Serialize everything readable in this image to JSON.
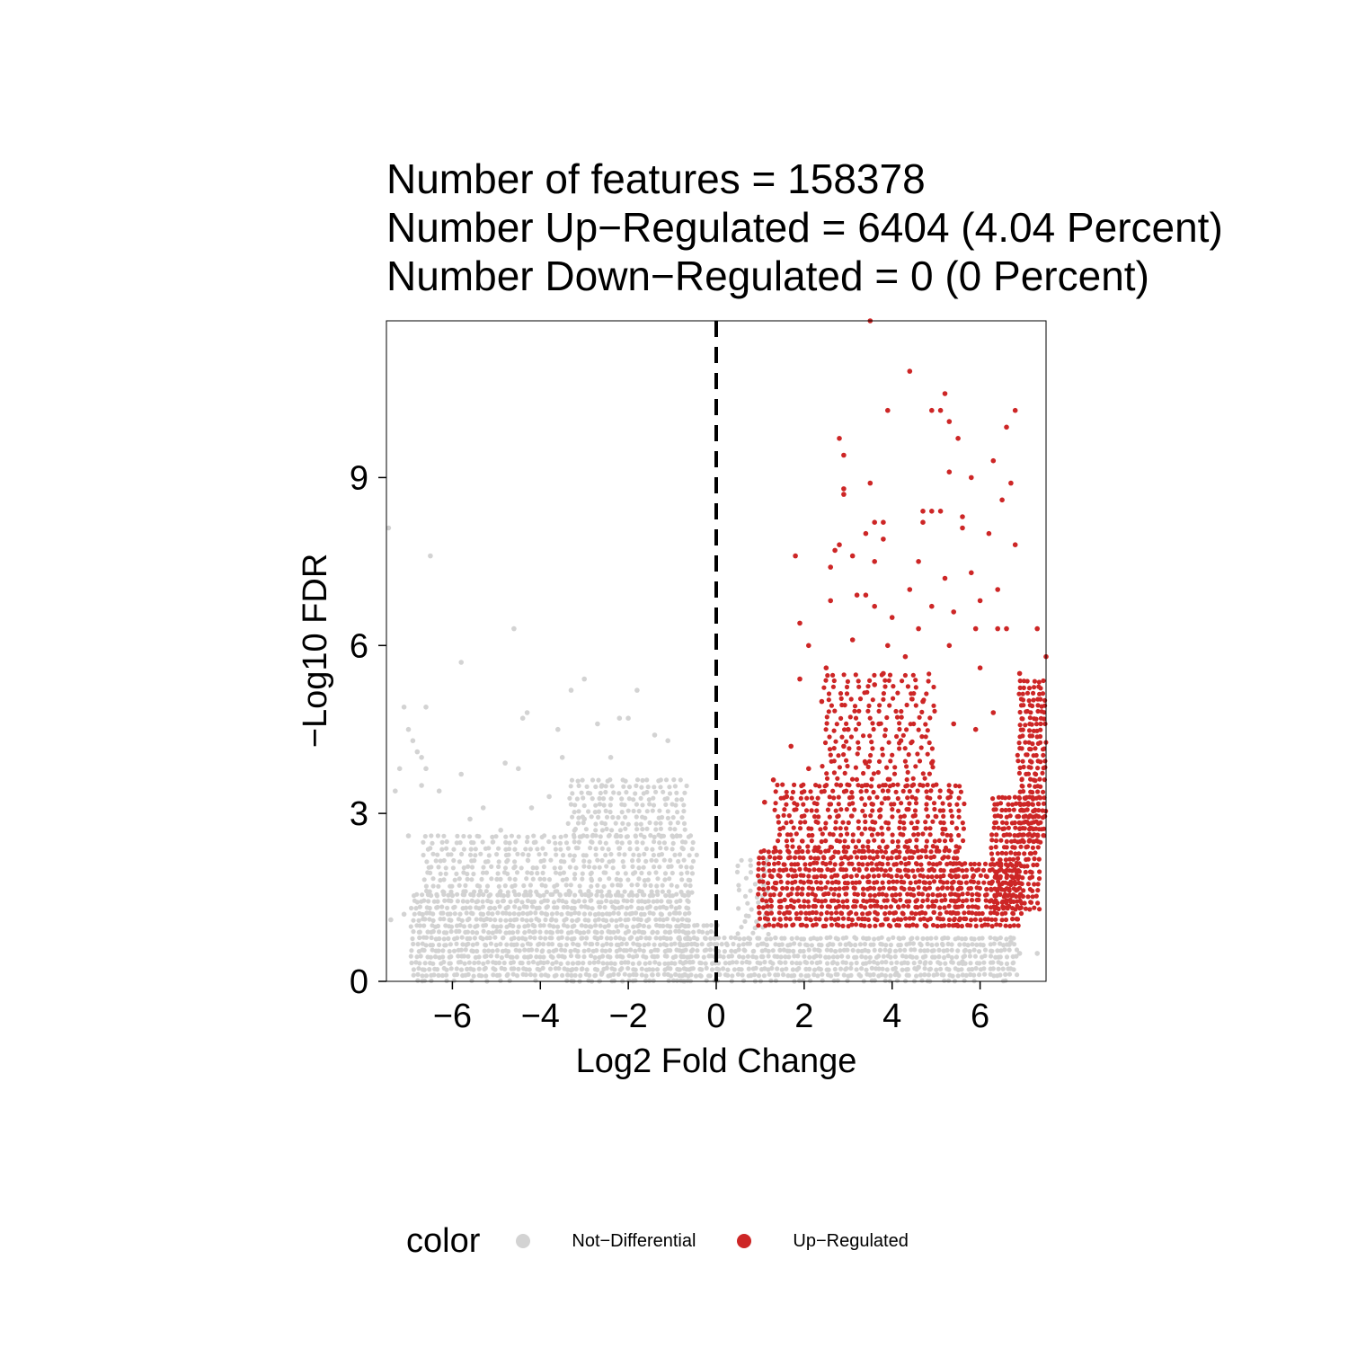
{
  "chart_data": {
    "type": "scatter",
    "title_lines": [
      "Number of features = 158378",
      "Number Up−Regulated = 6404 (4.04 Percent)",
      "Number Down−Regulated = 0 (0 Percent)"
    ],
    "xlabel": "Log2 Fold Change",
    "ylabel": "−Log10 FDR",
    "xlim": [
      -7.5,
      7.5
    ],
    "ylim": [
      0,
      11.8
    ],
    "x_ticks": [
      -6,
      -4,
      -2,
      0,
      2,
      4,
      6
    ],
    "x_tick_labels": [
      "−6",
      "−4",
      "−2",
      "0",
      "2",
      "4",
      "6"
    ],
    "y_ticks": [
      0,
      3,
      6,
      9
    ],
    "y_tick_labels": [
      "0",
      "3",
      "6",
      "9"
    ],
    "vline_x": 0,
    "grid": false,
    "legend_position": "bottom",
    "legend": {
      "title": "color",
      "entries": [
        {
          "label": "Not−Differential",
          "color": "#d3d3d3"
        },
        {
          "label": "Up−Regulated",
          "color": "#cd2626"
        }
      ]
    },
    "series": [
      {
        "name": "Not−Differential",
        "color": "#d3d3d3",
        "points": [
          [
            -7.45,
            8.1
          ],
          [
            -6.5,
            7.6
          ],
          [
            -4.6,
            6.3
          ],
          [
            -5.8,
            5.7
          ],
          [
            -3.0,
            5.4
          ],
          [
            -3.3,
            5.2
          ],
          [
            -1.8,
            5.2
          ],
          [
            -7.1,
            4.9
          ],
          [
            -6.6,
            4.9
          ],
          [
            -2.2,
            4.7
          ],
          [
            -4.3,
            4.8
          ],
          [
            -4.4,
            4.7
          ],
          [
            -2.0,
            4.7
          ],
          [
            -2.7,
            4.6
          ],
          [
            -7.0,
            4.5
          ],
          [
            -3.6,
            4.5
          ],
          [
            -1.4,
            4.4
          ],
          [
            -6.9,
            4.3
          ],
          [
            -1.1,
            4.3
          ],
          [
            -6.8,
            4.1
          ],
          [
            -6.7,
            4.0
          ],
          [
            -3.5,
            4.0
          ],
          [
            -2.4,
            4.0
          ],
          [
            -6.6,
            3.8
          ],
          [
            -4.8,
            3.9
          ],
          [
            -7.2,
            3.8
          ],
          [
            -4.5,
            3.8
          ],
          [
            -5.8,
            3.7
          ],
          [
            -6.7,
            3.5
          ],
          [
            -2.6,
            3.5
          ],
          [
            -7.3,
            3.4
          ],
          [
            -6.3,
            3.4
          ],
          [
            -3.8,
            3.3
          ],
          [
            -5.3,
            3.1
          ],
          [
            -4.2,
            3.1
          ],
          [
            -3.0,
            2.9
          ],
          [
            -5.6,
            2.9
          ],
          [
            -7.0,
            2.6
          ],
          [
            -4.9,
            2.7
          ],
          [
            -7.4,
            1.1
          ],
          [
            -7.1,
            1.2
          ],
          [
            -3.3,
            0.2
          ],
          [
            -2.6,
            0.15
          ],
          [
            0.0,
            0.35
          ],
          [
            4.6,
            0.25
          ],
          [
            5.6,
            0.35
          ],
          [
            6.7,
            0.7
          ],
          [
            6.9,
            0.5
          ],
          [
            7.3,
            0.5
          ],
          [
            4.1,
            0.15
          ]
        ],
        "bands": [
          {
            "x": [
              -6.9,
              -0.6
            ],
            "y": [
              0.0,
              1.6
            ],
            "density": "high"
          },
          {
            "x": [
              -6.6,
              -0.5
            ],
            "y": [
              1.6,
              2.6
            ],
            "density": "medium"
          },
          {
            "x": [
              -3.3,
              -0.7
            ],
            "y": [
              2.6,
              3.6
            ],
            "density": "medium"
          },
          {
            "x": [
              -0.8,
              0.0
            ],
            "y": [
              0.0,
              1.0
            ],
            "density": "high"
          },
          {
            "x": [
              0.0,
              6.8
            ],
            "y": [
              0.0,
              0.85
            ],
            "density": "high"
          },
          {
            "x": [
              0.6,
              1.2
            ],
            "y": [
              0.85,
              2.2
            ],
            "density": "low"
          }
        ]
      },
      {
        "name": "Up−Regulated",
        "color": "#cd2626",
        "points": [
          [
            3.5,
            11.8
          ],
          [
            4.4,
            10.9
          ],
          [
            5.2,
            10.5
          ],
          [
            3.9,
            10.2
          ],
          [
            4.9,
            10.2
          ],
          [
            5.1,
            10.2
          ],
          [
            6.8,
            10.2
          ],
          [
            5.3,
            10.0
          ],
          [
            6.6,
            9.9
          ],
          [
            2.8,
            9.7
          ],
          [
            5.5,
            9.7
          ],
          [
            2.9,
            9.4
          ],
          [
            5.3,
            9.1
          ],
          [
            5.8,
            9.0
          ],
          [
            3.5,
            8.9
          ],
          [
            6.3,
            9.3
          ],
          [
            6.7,
            8.9
          ],
          [
            2.9,
            8.8
          ],
          [
            2.9,
            8.7
          ],
          [
            6.5,
            8.6
          ],
          [
            4.7,
            8.4
          ],
          [
            4.9,
            8.4
          ],
          [
            5.1,
            8.4
          ],
          [
            6.2,
            8.0
          ],
          [
            5.6,
            8.3
          ],
          [
            3.6,
            8.2
          ],
          [
            3.8,
            8.2
          ],
          [
            4.7,
            8.2
          ],
          [
            5.6,
            8.1
          ],
          [
            3.4,
            8.0
          ],
          [
            3.8,
            7.9
          ],
          [
            1.8,
            7.6
          ],
          [
            2.6,
            7.4
          ],
          [
            2.8,
            7.8
          ],
          [
            3.1,
            7.6
          ],
          [
            6.8,
            7.8
          ],
          [
            4.6,
            7.5
          ],
          [
            5.8,
            7.3
          ],
          [
            3.6,
            7.5
          ],
          [
            2.7,
            7.7
          ],
          [
            5.2,
            7.2
          ],
          [
            4.4,
            7.0
          ],
          [
            6.4,
            7.0
          ],
          [
            1.9,
            6.4
          ],
          [
            2.6,
            6.8
          ],
          [
            3.2,
            6.9
          ],
          [
            3.4,
            6.9
          ],
          [
            3.6,
            6.7
          ],
          [
            4.9,
            6.7
          ],
          [
            5.4,
            6.6
          ],
          [
            4.0,
            6.5
          ],
          [
            6.0,
            6.8
          ],
          [
            4.6,
            6.3
          ],
          [
            3.1,
            6.1
          ],
          [
            2.1,
            6.0
          ],
          [
            3.9,
            6.0
          ],
          [
            6.4,
            6.3
          ],
          [
            6.6,
            6.3
          ],
          [
            7.3,
            6.3
          ],
          [
            5.9,
            6.3
          ],
          [
            5.3,
            6.0
          ],
          [
            4.3,
            5.8
          ],
          [
            3.8,
            5.5
          ],
          [
            2.5,
            5.6
          ],
          [
            6.0,
            5.6
          ],
          [
            7.5,
            5.8
          ],
          [
            1.9,
            5.4
          ],
          [
            3.6,
            5.3
          ],
          [
            4.7,
            5.0
          ],
          [
            2.4,
            5.0
          ],
          [
            6.9,
            5.5
          ],
          [
            6.3,
            4.8
          ],
          [
            5.4,
            4.6
          ],
          [
            3.0,
            4.5
          ],
          [
            1.7,
            4.2
          ],
          [
            1.3,
            3.6
          ],
          [
            2.9,
            4.2
          ],
          [
            3.7,
            4.6
          ],
          [
            4.2,
            4.3
          ],
          [
            5.9,
            4.5
          ],
          [
            1.1,
            3.2
          ],
          [
            1.6,
            3.3
          ],
          [
            3.4,
            3.9
          ],
          [
            4.9,
            3.9
          ],
          [
            2.1,
            3.8
          ]
        ],
        "bands": [
          {
            "x": [
              1.0,
              5.5
            ],
            "y": [
              1.0,
              2.4
            ],
            "density": "high"
          },
          {
            "x": [
              1.4,
              5.6
            ],
            "y": [
              2.4,
              3.5
            ],
            "density": "medium"
          },
          {
            "x": [
              2.5,
              5.0
            ],
            "y": [
              3.5,
              5.5
            ],
            "density": "low"
          },
          {
            "x": [
              5.4,
              6.9
            ],
            "y": [
              1.0,
              2.2
            ],
            "density": "high"
          },
          {
            "x": [
              6.3,
              7.3
            ],
            "y": [
              1.3,
              3.3
            ],
            "density": "high"
          },
          {
            "x": [
              6.9,
              7.5
            ],
            "y": [
              2.5,
              5.4
            ],
            "density": "high"
          }
        ]
      }
    ]
  }
}
